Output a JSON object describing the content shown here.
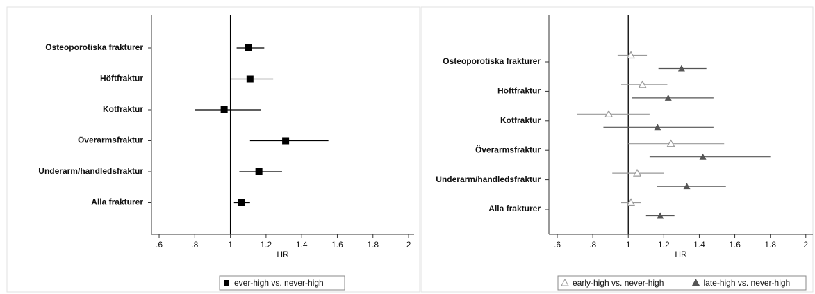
{
  "chart_data": [
    {
      "type": "forest",
      "xlabel": "HR",
      "refline": 1,
      "xlim": [
        0.557,
        2.031
      ],
      "xticks": [
        {
          "value": 0.6,
          "label": ".6"
        },
        {
          "value": 0.8,
          "label": ".8"
        },
        1,
        1.2,
        1.4,
        1.6,
        1.8,
        2
      ],
      "categories": [
        "Osteoporotiska frakturer",
        "Höftfraktur",
        "Kotfraktur",
        "Överarmsfraktur",
        "Underarm/handledsfraktur",
        "Alla frakturer"
      ],
      "series": [
        {
          "name": "ever-high vs. never-high",
          "color": "#000000",
          "marker": "square",
          "values": [
            1.1,
            1.11,
            0.965,
            1.31,
            1.16,
            1.06
          ],
          "lower": [
            1.035,
            1.0,
            0.8,
            1.11,
            1.05,
            1.02
          ],
          "upper": [
            1.19,
            1.24,
            1.17,
            1.55,
            1.29,
            1.11
          ]
        }
      ]
    },
    {
      "type": "forest",
      "xlabel": "HR",
      "refline": 1,
      "xlim": [
        0.553,
        2.04
      ],
      "xticks": [
        {
          "value": 0.6,
          "label": ".6"
        },
        {
          "value": 0.8,
          "label": ".8"
        },
        1,
        1.2,
        1.4,
        1.6,
        1.8,
        2
      ],
      "categories": [
        "Osteoporotiska frakturer",
        "Höftfraktur",
        "Kotfraktur",
        "Överarmsfraktur",
        "Underarm/handledsfraktur",
        "Alla frakturer"
      ],
      "series": [
        {
          "name": "early-high vs. never-high",
          "color": "#999999",
          "marker": "open-triangle",
          "values": [
            1.015,
            1.08,
            0.89,
            1.24,
            1.05,
            1.015
          ],
          "lower": [
            0.94,
            0.96,
            0.71,
            1.0,
            0.91,
            0.96
          ],
          "upper": [
            1.105,
            1.22,
            1.12,
            1.54,
            1.2,
            1.07
          ]
        },
        {
          "name": "late-high vs. never-high",
          "color": "#555555",
          "marker": "triangle",
          "values": [
            1.3,
            1.225,
            1.165,
            1.42,
            1.33,
            1.18
          ],
          "lower": [
            1.17,
            1.02,
            0.86,
            1.12,
            1.16,
            1.1
          ],
          "upper": [
            1.44,
            1.48,
            1.48,
            1.8,
            1.55,
            1.26
          ]
        }
      ]
    }
  ]
}
